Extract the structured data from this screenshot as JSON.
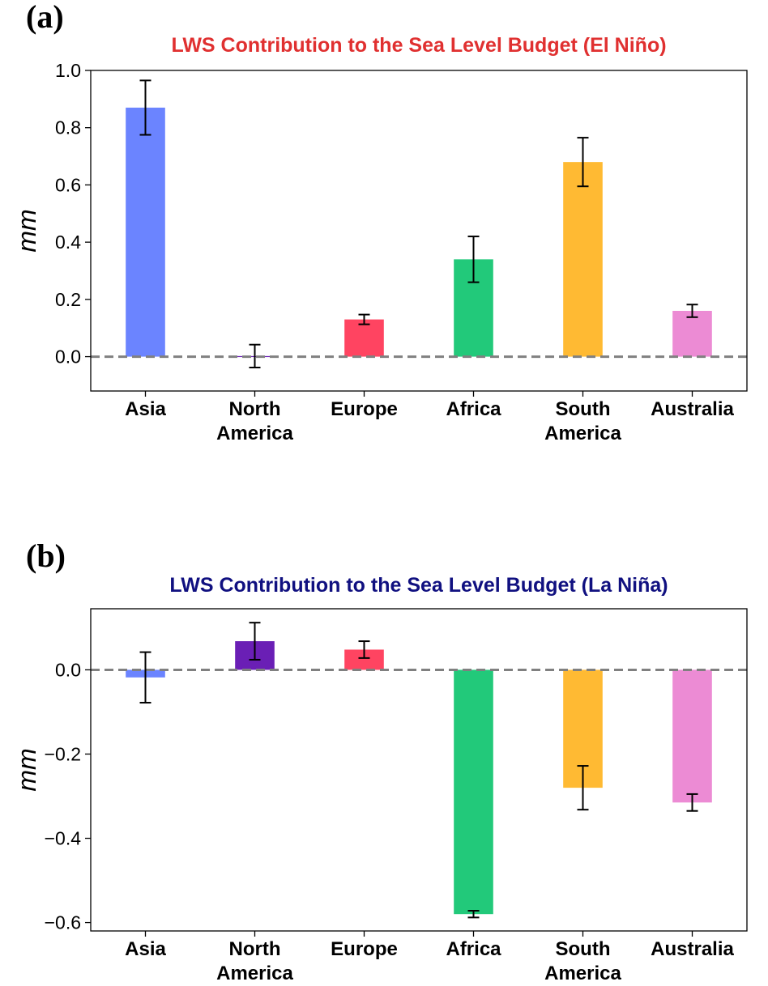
{
  "chart_data": [
    {
      "type": "bar",
      "panel_label": "(a)",
      "title": "LWS Contribution to the Sea Level Budget (El Niño)",
      "title_color": "#e03030",
      "xlabel": "",
      "ylabel": "mm",
      "ylim": [
        -0.12,
        1.0
      ],
      "yticks": [
        0.0,
        0.2,
        0.4,
        0.6,
        0.8,
        1.0
      ],
      "ytick_labels": [
        "0.0",
        "0.2",
        "0.4",
        "0.6",
        "0.8",
        "1.0"
      ],
      "categories": [
        [
          "Asia"
        ],
        [
          "North",
          "America"
        ],
        [
          "Europe"
        ],
        [
          "Africa"
        ],
        [
          "South",
          "America"
        ],
        [
          "Australia"
        ]
      ],
      "values": [
        0.87,
        0.002,
        0.13,
        0.34,
        0.68,
        0.16
      ],
      "error": [
        0.095,
        0.04,
        0.017,
        0.08,
        0.085,
        0.022
      ],
      "colors": [
        "#6b84ff",
        "#6a1fb5",
        "#ff4461",
        "#22c97a",
        "#ffba33",
        "#ec8bd4"
      ],
      "zero_line": true,
      "grid": false
    },
    {
      "type": "bar",
      "panel_label": "(b)",
      "title": "LWS Contribution to the Sea Level Budget (La Niña)",
      "title_color": "#101080",
      "xlabel": "",
      "ylabel": "mm",
      "ylim": [
        -0.62,
        0.145
      ],
      "yticks": [
        -0.6,
        -0.4,
        -0.2,
        0.0
      ],
      "ytick_labels": [
        "−0.6",
        "−0.4",
        "−0.2",
        "0.0"
      ],
      "categories": [
        [
          "Asia"
        ],
        [
          "North",
          "America"
        ],
        [
          "Europe"
        ],
        [
          "Africa"
        ],
        [
          "South",
          "America"
        ],
        [
          "Australia"
        ]
      ],
      "values": [
        -0.018,
        0.068,
        0.048,
        -0.58,
        -0.28,
        -0.315
      ],
      "error": [
        0.06,
        0.044,
        0.02,
        0.008,
        0.052,
        0.02
      ],
      "colors": [
        "#6b84ff",
        "#6a1fb5",
        "#ff4461",
        "#22c97a",
        "#ffba33",
        "#ec8bd4"
      ],
      "zero_line": true,
      "grid": false
    }
  ]
}
